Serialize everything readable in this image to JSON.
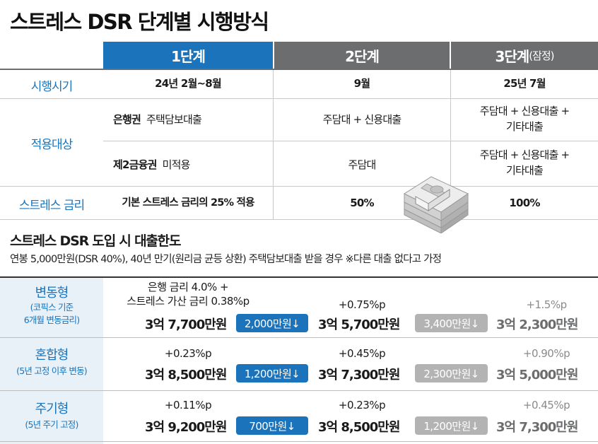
{
  "title": "스트레스 DSR 단계별 시행방식",
  "header": {
    "stage1": "1단계",
    "stage2": "2단계",
    "stage3": "3단계",
    "stage3_note": "(잠정)"
  },
  "rows": {
    "timing": {
      "label": "시행시기",
      "s1": "24년 2월~8월",
      "s2": "9월",
      "s3": "25년 7월"
    },
    "target": {
      "label": "적용대상",
      "bank": {
        "type": "은행권",
        "desc": "주택담보대출",
        "s2": "주담대 + 신용대출",
        "s3_line1": "주담대 + 신용대출 +",
        "s3_line2": "기타대출"
      },
      "second": {
        "type": "제2금융권",
        "desc": "미적용",
        "s2": "주담대",
        "s3_line1": "주담대 + 신용대출 +",
        "s3_line2": "기타대출"
      }
    },
    "stress_rate": {
      "label": "스트레스 금리",
      "s1": "기본 스트레스 금리의 25% 적용",
      "s2": "50%",
      "s3": "100%"
    }
  },
  "section": {
    "title": "스트레스 DSR 도입 시 대출한도",
    "subtitle": "연봉 5,000만원(DSR 40%), 40년 만기(원리금 균등 상환) 주택담보대출 받을 경우  ※다른 대출 없다고 가정"
  },
  "loans": [
    {
      "label": "변동형",
      "sub_line1": "(코픽스 기준",
      "sub_line2": "6개월 변동금리)",
      "s1_rate_line1": "은행 금리 4.0% +",
      "s1_rate_line2": "스트레스 가산 금리 0.38%p",
      "s1_amount": "3억 7,700만원",
      "s1_badge": "2,000만원↓",
      "s2_rate": "+0.75%p",
      "s2_amount": "3억 5,700만원",
      "s2_badge": "3,400만원↓",
      "s3_rate": "+1.5%p",
      "s3_amount": "3억 2,300만원"
    },
    {
      "label": "혼합형",
      "sub_line1": "(5년 고정 이후 변동)",
      "sub_line2": "",
      "s1_rate_line1": "+0.23%p",
      "s1_rate_line2": "",
      "s1_amount": "3억 8,500만원",
      "s1_badge": "1,200만원↓",
      "s2_rate": "+0.45%p",
      "s2_amount": "3억 7,300만원",
      "s2_badge": "2,300만원↓",
      "s3_rate": "+0.90%p",
      "s3_amount": "3억 5,000만원"
    },
    {
      "label": "주기형",
      "sub_line1": "(5년 주기 고정)",
      "sub_line2": "",
      "s1_rate_line1": "+0.11%p",
      "s1_rate_line2": "",
      "s1_amount": "3억 9,200만원",
      "s1_badge": "700만원↓",
      "s2_rate": "+0.23%p",
      "s2_amount": "3억 8,500만원",
      "s2_badge": "1,200만원↓",
      "s3_rate": "+0.45%p",
      "s3_amount": "3억 7,300만원"
    }
  ],
  "colors": {
    "accent_blue": "#1b74bb",
    "header_gray": "#6c6d6f",
    "badge_gray": "#b3b3b3",
    "label_bg": "#e8f0f8"
  },
  "icons": {
    "money_stack": "money-stack-icon"
  }
}
